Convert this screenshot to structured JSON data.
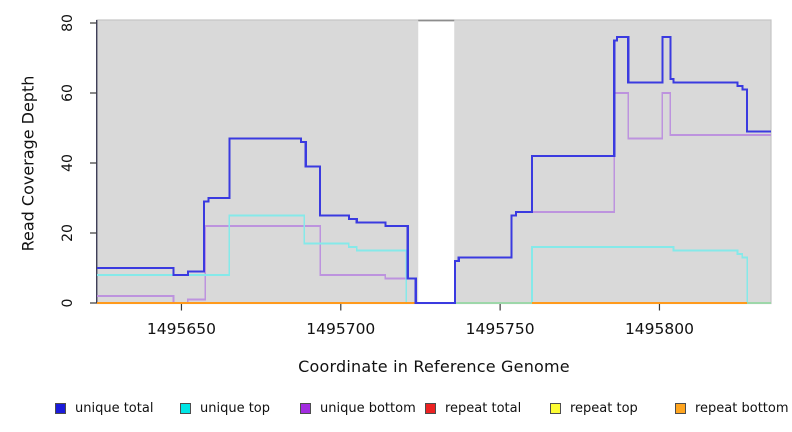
{
  "figure": {
    "xlabel": "Coordinate in Reference Genome",
    "ylabel": "Read Coverage Depth"
  },
  "chart_data": {
    "type": "line",
    "style": "step-coverage",
    "title": "",
    "xlabel": "Coordinate in Reference Genome",
    "ylabel": "Read Coverage Depth",
    "xlim": [
      1495623.5,
      1495835
    ],
    "ylim": [
      0,
      80
    ],
    "x_ticks": [
      1495650,
      1495700,
      1495750,
      1495800
    ],
    "y_ticks": [
      0,
      20,
      40,
      60,
      80
    ],
    "grid": false,
    "plot_bg_color": "#d9d9d9",
    "border_color": "#c5c5c5",
    "axis_line_color": "#3f3f58",
    "no_data_gap": {
      "x1": 1495724.3,
      "x2": 1495735.6,
      "fill": "#ffffff",
      "top_border_color": "#8d8d8d"
    },
    "series": [
      {
        "name": "unique total",
        "color": "#3a3ae0",
        "width": 2.1,
        "z": 7,
        "points": [
          [
            1495623.5,
            10
          ],
          [
            1495647.5,
            8
          ],
          [
            1495652,
            9
          ],
          [
            1495657,
            29
          ],
          [
            1495658.5,
            30
          ],
          [
            1495665,
            47
          ],
          [
            1495687.5,
            46
          ],
          [
            1495689,
            39
          ],
          [
            1495693.5,
            25
          ],
          [
            1495702.5,
            24
          ],
          [
            1495705,
            23
          ],
          [
            1495714,
            22
          ],
          [
            1495721,
            7
          ],
          [
            1495723.5,
            0
          ],
          [
            1495735.8,
            12
          ],
          [
            1495737,
            13
          ],
          [
            1495753.5,
            25
          ],
          [
            1495755,
            26
          ],
          [
            1495760,
            42
          ],
          [
            1495785.8,
            75
          ],
          [
            1495786.6,
            76
          ],
          [
            1495790.2,
            63
          ],
          [
            1495800.9,
            76
          ],
          [
            1495803.4,
            64
          ],
          [
            1495804.4,
            63
          ],
          [
            1495824.5,
            62
          ],
          [
            1495826,
            61
          ],
          [
            1495827.5,
            49
          ],
          [
            1495835,
            49
          ]
        ]
      },
      {
        "name": "unique top",
        "color": "#85e9e9",
        "width": 1.6,
        "z": 2,
        "points": [
          [
            1495623.5,
            8
          ],
          [
            1495665,
            25
          ],
          [
            1495688.5,
            17
          ],
          [
            1495702.5,
            16
          ],
          [
            1495705,
            15
          ],
          [
            1495720.5,
            0
          ],
          [
            1495760,
            16
          ],
          [
            1495804.4,
            15
          ],
          [
            1495824.5,
            14
          ],
          [
            1495826,
            13
          ],
          [
            1495827.5,
            0
          ],
          [
            1495835,
            0
          ]
        ]
      },
      {
        "name": "unique bottom",
        "color": "#bd93de",
        "width": 1.6,
        "z": 1,
        "points": [
          [
            1495623.5,
            2
          ],
          [
            1495647.5,
            0
          ],
          [
            1495652,
            1
          ],
          [
            1495657.5,
            22
          ],
          [
            1495693.5,
            8
          ],
          [
            1495714,
            7
          ],
          [
            1495723.5,
            0
          ],
          [
            1495735.8,
            12
          ],
          [
            1495737,
            13
          ],
          [
            1495753.5,
            25
          ],
          [
            1495755,
            26
          ],
          [
            1495785.8,
            60
          ],
          [
            1495790.2,
            47
          ],
          [
            1495800.9,
            60
          ],
          [
            1495803.4,
            48
          ],
          [
            1495835,
            48
          ]
        ]
      },
      {
        "name": "repeat total",
        "color": "#dd3333",
        "width": 1.5,
        "z": 3,
        "points": [
          [
            1495623.5,
            0
          ],
          [
            1495835,
            0
          ]
        ]
      },
      {
        "name": "repeat top",
        "color": "#f2f24a",
        "width": 1.5,
        "z": 4,
        "points": [
          [
            1495623.5,
            0
          ],
          [
            1495835,
            0
          ]
        ]
      },
      {
        "name": "repeat bottom",
        "color": "#ff9a1c",
        "width": 1.8,
        "z": 5,
        "points": [
          [
            1495623.5,
            0
          ],
          [
            1495835,
            0
          ]
        ]
      }
    ],
    "zero_line_overlap": {
      "color": "#9dd7a9",
      "width": 1.8,
      "ranges": [
        [
          1495735.8,
          1495760
        ],
        [
          1495827.5,
          1495835
        ]
      ]
    },
    "legend": [
      {
        "label": "unique total",
        "color": "#1b1bdb"
      },
      {
        "label": "unique top",
        "color": "#00e5e5"
      },
      {
        "label": "unique bottom",
        "color": "#a22ce0"
      },
      {
        "label": "repeat total",
        "color": "#ec2222"
      },
      {
        "label": "repeat top",
        "color": "#fcfc33"
      },
      {
        "label": "repeat bottom",
        "color": "#ffa51f"
      }
    ]
  }
}
